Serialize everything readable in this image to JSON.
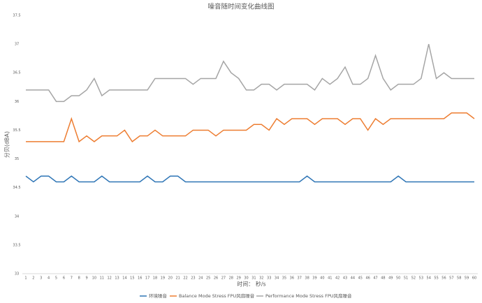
{
  "chart_data": {
    "type": "line",
    "title": "噪音随时间变化曲线图",
    "x_label": "时间： 秒/s",
    "y_label": "分贝(dBA)",
    "categories": [
      1,
      2,
      3,
      4,
      5,
      6,
      7,
      8,
      9,
      10,
      11,
      12,
      13,
      14,
      15,
      16,
      17,
      18,
      19,
      20,
      21,
      22,
      23,
      24,
      25,
      26,
      27,
      28,
      29,
      30,
      31,
      32,
      33,
      34,
      35,
      36,
      37,
      38,
      39,
      40,
      41,
      42,
      43,
      44,
      45,
      46,
      47,
      48,
      49,
      50,
      51,
      52,
      53,
      54,
      55,
      56,
      57,
      58,
      59,
      60
    ],
    "ylim": [
      33,
      37.5
    ],
    "yticks": [
      33,
      33.5,
      34,
      34.5,
      35,
      35.5,
      36,
      36.5,
      37,
      37.5
    ],
    "grid": false,
    "legend": "bottom",
    "series": [
      {
        "name": "环境噪音",
        "color": "#2e75b6",
        "values": [
          34.7,
          34.6,
          34.7,
          34.7,
          34.6,
          34.6,
          34.7,
          34.6,
          34.6,
          34.6,
          34.7,
          34.6,
          34.6,
          34.6,
          34.6,
          34.6,
          34.7,
          34.6,
          34.6,
          34.7,
          34.7,
          34.6,
          34.6,
          34.6,
          34.6,
          34.6,
          34.6,
          34.6,
          34.6,
          34.6,
          34.6,
          34.6,
          34.6,
          34.6,
          34.6,
          34.6,
          34.6,
          34.7,
          34.6,
          34.6,
          34.6,
          34.6,
          34.6,
          34.6,
          34.6,
          34.6,
          34.6,
          34.6,
          34.6,
          34.7,
          34.6,
          34.6,
          34.6,
          34.6,
          34.6,
          34.6,
          34.6,
          34.6,
          34.6,
          34.6
        ]
      },
      {
        "name": "Balance Mode Stress FPU风扇噪音",
        "color": "#ed7d31",
        "values": [
          35.3,
          35.3,
          35.3,
          35.3,
          35.3,
          35.3,
          35.7,
          35.3,
          35.4,
          35.3,
          35.4,
          35.4,
          35.4,
          35.5,
          35.3,
          35.4,
          35.4,
          35.5,
          35.4,
          35.4,
          35.4,
          35.4,
          35.5,
          35.5,
          35.5,
          35.4,
          35.5,
          35.5,
          35.5,
          35.5,
          35.6,
          35.6,
          35.5,
          35.7,
          35.6,
          35.7,
          35.7,
          35.7,
          35.6,
          35.7,
          35.7,
          35.7,
          35.6,
          35.7,
          35.7,
          35.5,
          35.7,
          35.6,
          35.7,
          35.7,
          35.7,
          35.7,
          35.7,
          35.7,
          35.7,
          35.7,
          35.8,
          35.8,
          35.8,
          35.7
        ]
      },
      {
        "name": "Performance Mode Stress FPU风扇噪音",
        "color": "#a5a5a5",
        "values": [
          36.2,
          36.2,
          36.2,
          36.2,
          36.0,
          36.0,
          36.1,
          36.1,
          36.2,
          36.4,
          36.1,
          36.2,
          36.2,
          36.2,
          36.2,
          36.2,
          36.2,
          36.4,
          36.4,
          36.4,
          36.4,
          36.4,
          36.3,
          36.4,
          36.4,
          36.4,
          36.7,
          36.5,
          36.4,
          36.2,
          36.2,
          36.3,
          36.3,
          36.2,
          36.3,
          36.3,
          36.3,
          36.3,
          36.2,
          36.4,
          36.3,
          36.4,
          36.6,
          36.3,
          36.3,
          36.4,
          36.8,
          36.4,
          36.2,
          36.3,
          36.3,
          36.3,
          36.4,
          37.0,
          36.4,
          36.5,
          36.4,
          36.4,
          36.4,
          36.4
        ]
      }
    ]
  }
}
